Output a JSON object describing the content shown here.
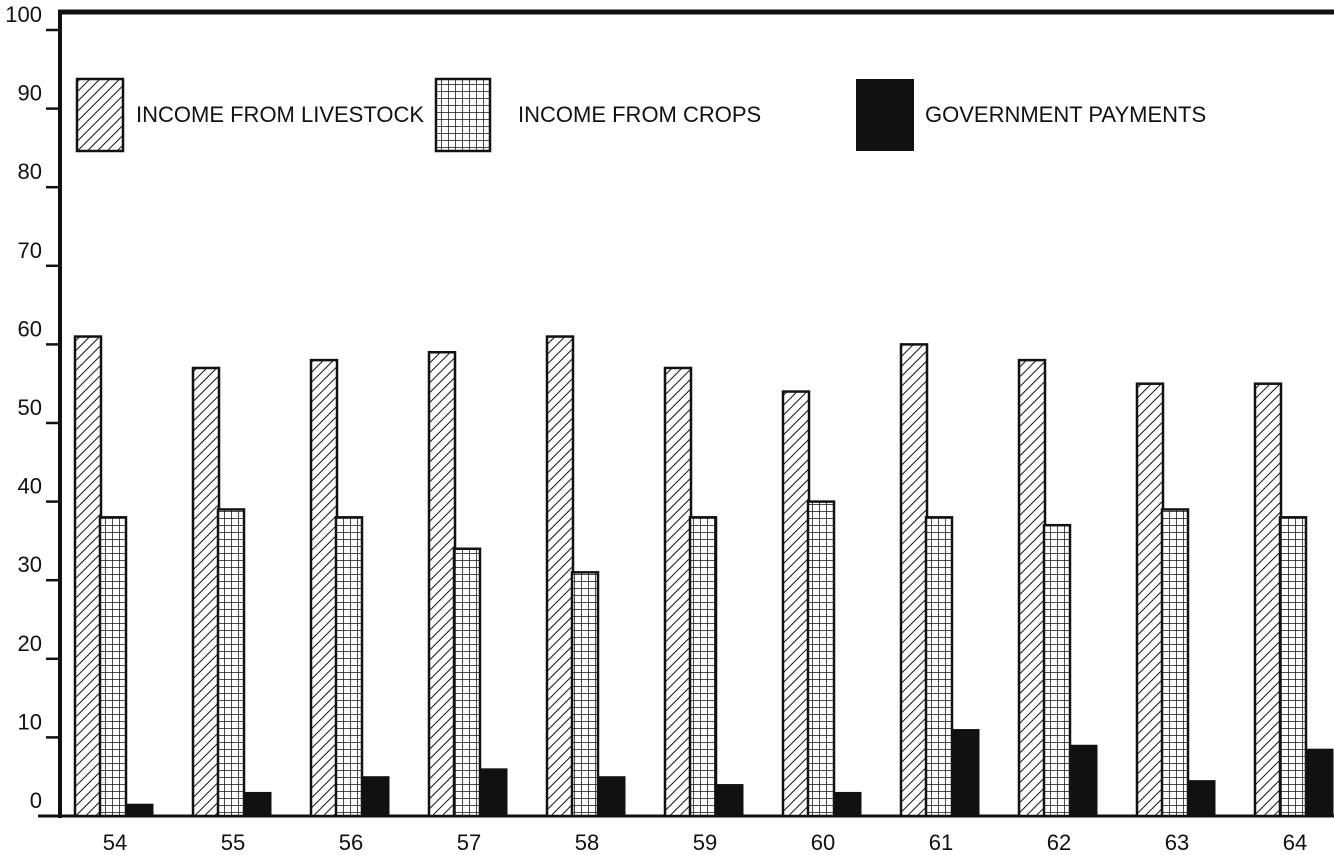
{
  "chart_data": {
    "type": "bar",
    "title": "",
    "xlabel": "",
    "ylabel": "",
    "ylim": [
      0,
      100
    ],
    "yticks": [
      "0",
      "10",
      "20",
      "30",
      "40",
      "50",
      "60",
      "70",
      "80",
      "90",
      "100"
    ],
    "categories": [
      "54",
      "55",
      "56",
      "57",
      "58",
      "59",
      "60",
      "61",
      "62",
      "63",
      "64"
    ],
    "legend_position": "top",
    "grid": false,
    "series": [
      {
        "name": "INCOME FROM LIVESTOCK",
        "pattern": "diagonal-hatch",
        "values": [
          61,
          57,
          58,
          59,
          61,
          57,
          54,
          60,
          58,
          55,
          55
        ]
      },
      {
        "name": "INCOME FROM CROPS",
        "pattern": "grid-hatch",
        "values": [
          38,
          39,
          38,
          34,
          31,
          38,
          40,
          38,
          37,
          39,
          38
        ]
      },
      {
        "name": "GOVERNMENT PAYMENTS",
        "pattern": "solid",
        "values": [
          1.5,
          3,
          5,
          6,
          5,
          4,
          3,
          11,
          9,
          4.5,
          8.5
        ]
      }
    ]
  },
  "colors": {
    "ink": "#111111",
    "background": "#ffffff"
  }
}
